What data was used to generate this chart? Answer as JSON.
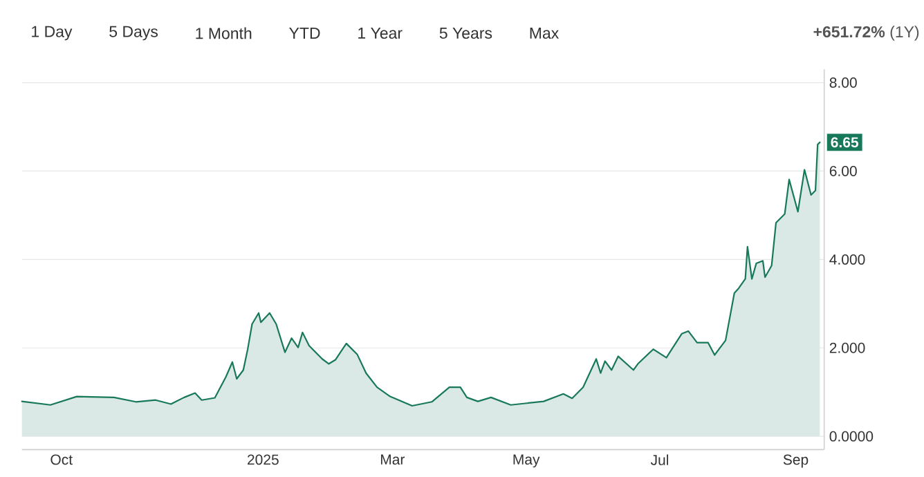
{
  "chart_data": {
    "type": "area",
    "annotations": [
      "1 Day",
      "5 Days",
      "1 Month",
      "YTD",
      "1 Year",
      "5 Years",
      "Max",
      "**+651.72%** (1Y)",
      {
        "text": "6.65",
        "x": "2025-09-12",
        "y": 6.65
      }
    ],
    "x": [
      "2024-09-13",
      "2024-09-26",
      "2024-10-08",
      "2024-10-25",
      "2024-11-04",
      "2024-11-13",
      "2024-11-20",
      "2024-11-26",
      "2024-12-01",
      "2024-12-04",
      "2024-12-10",
      "2024-12-15",
      "2024-12-18",
      "2024-12-20",
      "2024-12-23",
      "2024-12-25",
      "2024-12-27",
      "2024-12-30",
      "2024-12-31",
      "2025-01-04",
      "2025-01-07",
      "2025-01-11",
      "2025-01-14",
      "2025-01-17",
      "2025-01-19",
      "2025-01-22",
      "2025-01-28",
      "2025-01-31",
      "2025-02-03",
      "2025-02-08",
      "2025-02-13",
      "2025-02-17",
      "2025-02-22",
      "2025-02-28",
      "2025-03-10",
      "2025-03-19",
      "2025-03-27",
      "2025-04-01",
      "2025-04-04",
      "2025-04-09",
      "2025-04-15",
      "2025-04-24",
      "2025-05-09",
      "2025-05-18",
      "2025-05-22",
      "2025-05-27",
      "2025-06-02",
      "2025-06-04",
      "2025-06-06",
      "2025-06-09",
      "2025-06-12",
      "2025-06-19",
      "2025-06-21",
      "2025-06-28",
      "2025-07-04",
      "2025-07-11",
      "2025-07-14",
      "2025-07-18",
      "2025-07-23",
      "2025-07-26",
      "2025-07-31",
      "2025-08-04",
      "2025-08-06",
      "2025-08-09",
      "2025-08-10",
      "2025-08-12",
      "2025-08-14",
      "2025-08-17",
      "2025-08-18",
      "2025-08-21",
      "2025-08-23",
      "2025-08-27",
      "2025-08-29",
      "2025-09-02",
      "2025-09-05",
      "2025-09-08",
      "2025-09-10",
      "2025-09-11",
      "2025-09-12"
    ],
    "series": [
      {
        "color": "#17785a",
        "values": [
          0.79,
          0.71,
          0.9,
          0.88,
          0.78,
          0.82,
          0.73,
          0.88,
          0.98,
          0.82,
          0.87,
          1.34,
          1.68,
          1.3,
          1.5,
          1.97,
          2.54,
          2.79,
          2.58,
          2.79,
          2.54,
          1.9,
          2.22,
          2.01,
          2.35,
          2.05,
          1.75,
          1.64,
          1.73,
          2.1,
          1.85,
          1.43,
          1.11,
          0.9,
          0.69,
          0.78,
          1.11,
          1.11,
          0.88,
          0.79,
          0.88,
          0.71,
          0.79,
          0.96,
          0.86,
          1.11,
          1.75,
          1.43,
          1.7,
          1.5,
          1.81,
          1.5,
          1.64,
          1.97,
          1.78,
          2.32,
          2.38,
          2.12,
          2.12,
          1.84,
          2.17,
          3.24,
          3.35,
          3.56,
          4.29,
          3.56,
          3.91,
          3.97,
          3.6,
          3.86,
          4.83,
          5.03,
          5.81,
          5.08,
          6.03,
          5.46,
          5.56,
          6.6,
          6.65
        ]
      }
    ],
    "xlim": [
      "2024-09-13",
      "2025-09-14"
    ],
    "xticks": [
      {
        "value": "2024-10-01",
        "label": "Oct"
      },
      {
        "value": "2025-01-01",
        "label": "2025"
      },
      {
        "value": "2025-03-01",
        "label": "Mar"
      },
      {
        "value": "2025-05-01",
        "label": "May"
      },
      {
        "value": "2025-07-01",
        "label": "Jul"
      },
      {
        "value": "2025-09-01",
        "label": "Sep"
      }
    ],
    "ylim": [
      -0.3,
      8.3
    ],
    "yticks": [
      {
        "value": 0,
        "label": "0.0000"
      },
      {
        "value": 2,
        "label": "2.000"
      },
      {
        "value": 4,
        "label": "4.000"
      },
      {
        "value": 6,
        "label": "6.00"
      },
      {
        "value": 8,
        "label": "8.00"
      }
    ],
    "grid": "y"
  }
}
